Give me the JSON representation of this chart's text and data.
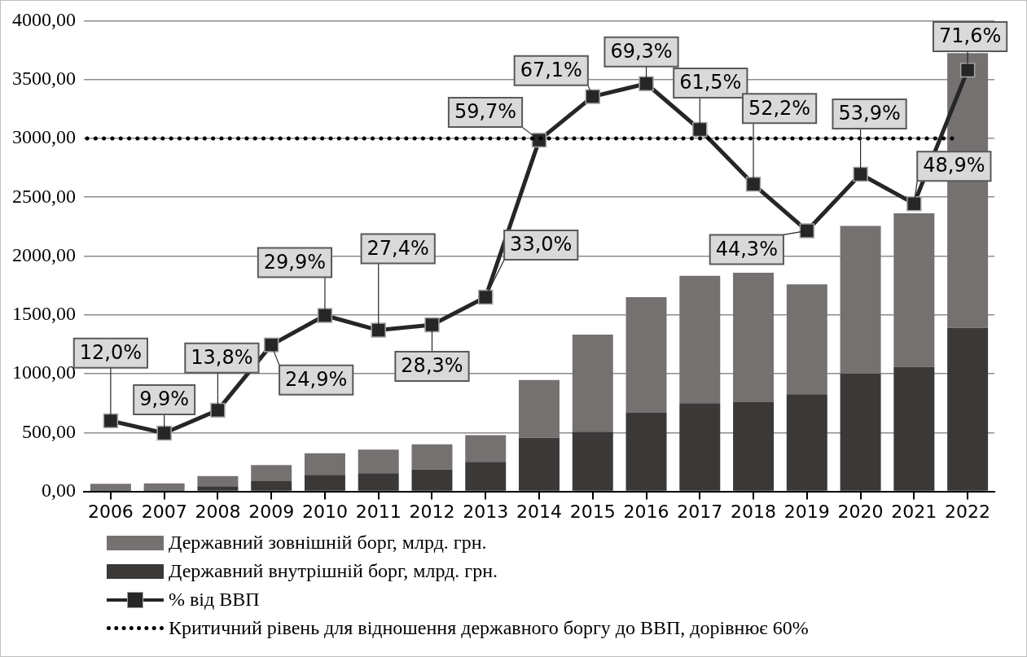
{
  "chart_data": {
    "type": "bar",
    "stacked": true,
    "categories": [
      "2006",
      "2007",
      "2008",
      "2009",
      "2010",
      "2011",
      "2012",
      "2013",
      "2014",
      "2015",
      "2016",
      "2017",
      "2018",
      "2019",
      "2020",
      "2021",
      "2022"
    ],
    "series": [
      {
        "name": "Державний внутрішній борг, млрд. грн.",
        "color": "#3b3838",
        "values": [
          14,
          15,
          44,
          88,
          140,
          155,
          186,
          252,
          456,
          507,
          669,
          749,
          758,
          825,
          1001,
          1058,
          1389
        ]
      },
      {
        "name": "Державний зовнішній борг, млрд. грн.",
        "color": "#767171",
        "values": [
          50,
          54,
          86,
          135,
          184,
          201,
          214,
          226,
          490,
          825,
          982,
          1083,
          1100,
          934,
          1255,
          1306,
          2336
        ]
      },
      {
        "name": "% від ВВП",
        "type": "line",
        "axis": "y2",
        "color": "#262626",
        "marker": "square",
        "values": [
          12.0,
          9.9,
          13.8,
          24.9,
          29.9,
          27.4,
          28.3,
          33.0,
          59.7,
          67.1,
          69.3,
          61.5,
          52.2,
          44.3,
          53.9,
          48.9,
          71.6
        ],
        "value_labels": [
          "12,0%",
          "9,9%",
          "13,8%",
          "24,9%",
          "29,9%",
          "27,4%",
          "28,3%",
          "33,0%",
          "59,7%",
          "67,1%",
          "69,3%",
          "61,5%",
          "52,2%",
          "44,3%",
          "53,9%",
          "48,9%",
          "71,6%"
        ]
      }
    ],
    "ylim": [
      0,
      4000
    ],
    "yticks": [
      {
        "value": 0,
        "label": "0,00"
      },
      {
        "value": 500,
        "label": "500,00"
      },
      {
        "value": 1000,
        "label": "1000,00"
      },
      {
        "value": 1500,
        "label": "1500,00"
      },
      {
        "value": 2000,
        "label": "2000,00"
      },
      {
        "value": 2500,
        "label": "2500,00"
      },
      {
        "value": 3000,
        "label": "3000,00"
      },
      {
        "value": 3500,
        "label": "3500,00"
      },
      {
        "value": 4000,
        "label": "4000,00"
      }
    ],
    "y2lim": [
      0,
      80
    ],
    "tick_labels": "xy",
    "ref_lines": [
      {
        "axis": "y2",
        "value": 60,
        "label": "Критичний рівень для відношення державного боргу до ВВП, дорівнює 60%",
        "color": "#000000",
        "line_style": "dotted"
      }
    ],
    "grid": "y",
    "legend": "bottom"
  }
}
